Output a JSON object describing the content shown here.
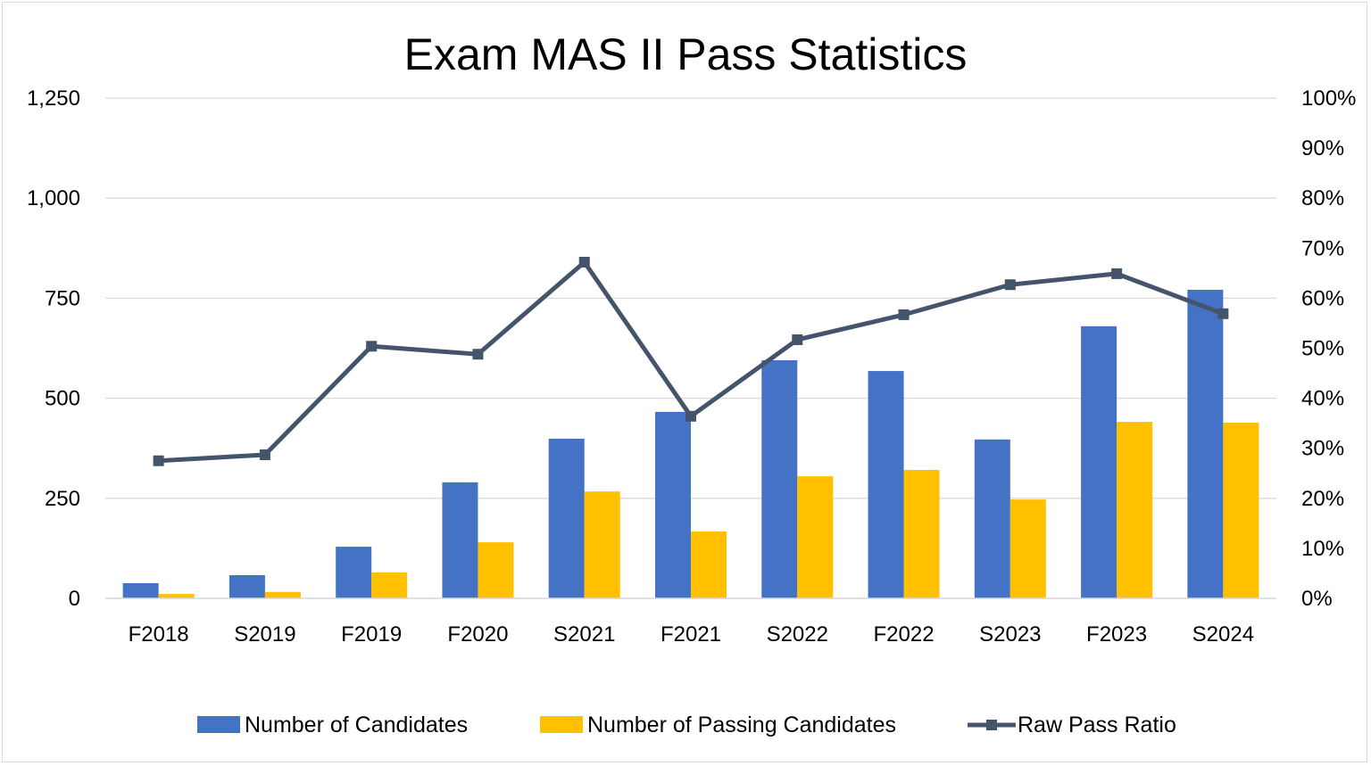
{
  "chart_data": {
    "type": "bar",
    "title": "Exam MAS II Pass Statistics",
    "categories": [
      "F2018",
      "S2019",
      "F2019",
      "F2020",
      "S2021",
      "F2021",
      "S2022",
      "F2022",
      "S2023",
      "F2023",
      "S2024"
    ],
    "series": [
      {
        "name": "Number of Candidates",
        "type": "bar",
        "axis": "left",
        "color": "#4472C4",
        "values": [
          38,
          58,
          129,
          290,
          399,
          466,
          595,
          568,
          397,
          680,
          771
        ]
      },
      {
        "name": "Number of Passing Candidates",
        "type": "bar",
        "axis": "left",
        "color": "#FFC000",
        "values": [
          11,
          16,
          65,
          140,
          267,
          167,
          305,
          321,
          247,
          441,
          439
        ]
      },
      {
        "name": "Raw Pass Ratio",
        "type": "line",
        "axis": "right",
        "color": "#44546A",
        "marker": "square",
        "values": [
          27.5,
          28.7,
          50.4,
          48.8,
          67.2,
          36.4,
          51.7,
          56.7,
          62.7,
          64.9,
          56.9
        ]
      }
    ],
    "y_left": {
      "ylim": [
        0,
        1250
      ],
      "ticks": [
        "0",
        "250",
        "500",
        "750",
        "1,000",
        "1,250"
      ]
    },
    "y_right": {
      "ylim": [
        0,
        100
      ],
      "ticks": [
        "0%",
        "10%",
        "20%",
        "30%",
        "40%",
        "50%",
        "60%",
        "70%",
        "80%",
        "90%",
        "100%"
      ]
    },
    "grid": true,
    "legend": "bottom"
  }
}
